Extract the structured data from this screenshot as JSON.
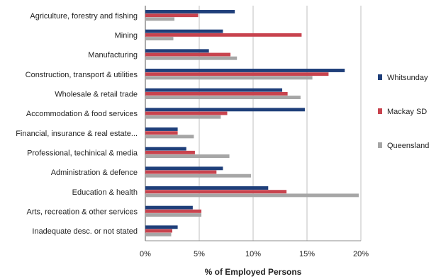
{
  "chart_data": {
    "type": "bar",
    "orientation": "horizontal",
    "categories": [
      "Agriculture, forestry and fishing",
      "Mining",
      "Manufacturing",
      "Construction, transport & utilities",
      "Wholesale & retail trade",
      "Accommodation & food services",
      "Financial, insurance & real estate...",
      "Professional, techinical & media",
      "Administration & defence",
      "Education & health",
      "Arts, recreation & other services",
      "Inadequate desc. or not stated"
    ],
    "series": [
      {
        "name": "Whitsunday",
        "color": "#1f3f7a",
        "values": [
          8.3,
          7.2,
          5.9,
          18.5,
          12.7,
          14.8,
          3.0,
          3.8,
          7.2,
          11.4,
          4.4,
          3.0
        ]
      },
      {
        "name": "Mackay SD",
        "color": "#c8434e",
        "values": [
          4.9,
          14.5,
          7.9,
          17.0,
          13.2,
          7.6,
          3.0,
          4.6,
          6.6,
          13.1,
          5.2,
          2.5
        ]
      },
      {
        "name": "Queensland",
        "color": "#a6a6a6",
        "values": [
          2.7,
          2.6,
          8.5,
          15.5,
          14.4,
          7.0,
          4.5,
          7.8,
          9.8,
          19.8,
          5.2,
          2.4
        ]
      }
    ],
    "xlabel": "% of Employed Persons",
    "xlim": [
      0,
      20
    ],
    "xticks": [
      "0%",
      "5%",
      "10%",
      "15%",
      "20%"
    ],
    "grid": "vertical",
    "legend": "right"
  }
}
